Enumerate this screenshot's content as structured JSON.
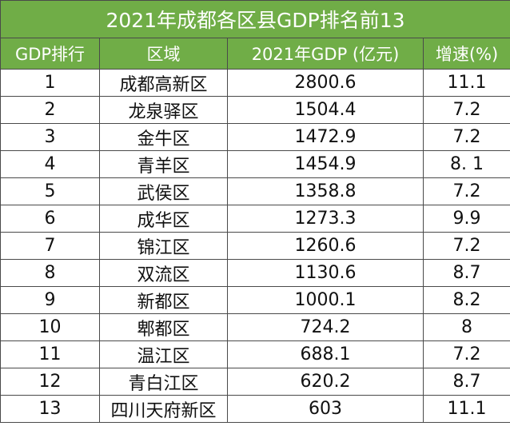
{
  "table": {
    "title": "2021年成都各区县GDP排名前13",
    "headers": [
      "GDP排行",
      "区域",
      "2021年GDP (亿元)",
      "增速(%)"
    ],
    "rows": [
      [
        "1",
        "成都高新区",
        "2800.6",
        "11.1"
      ],
      [
        "2",
        "龙泉驿区",
        "1504.4",
        "7.2"
      ],
      [
        "3",
        "金牛区",
        "1472.9",
        "7.2"
      ],
      [
        "4",
        "青羊区",
        "1454.9",
        "8. 1"
      ],
      [
        "5",
        "武侯区",
        "1358.8",
        "7.2"
      ],
      [
        "6",
        "成华区",
        "1273.3",
        "9.9"
      ],
      [
        "7",
        "锦江区",
        "1260.6",
        "7.2"
      ],
      [
        "8",
        "双流区",
        "1130.6",
        "8.7"
      ],
      [
        "9",
        "新都区",
        "1000.1",
        "8.2"
      ],
      [
        "10",
        "郫都区",
        "724.2",
        "8"
      ],
      [
        "11",
        "温江区",
        "688.1",
        "7.2"
      ],
      [
        "12",
        "青白江区",
        "620.2",
        "8.7"
      ],
      [
        "13",
        "四川天府新区",
        "603",
        "11.1"
      ]
    ]
  },
  "colors": {
    "header_bg": "#70ad47",
    "header_text": "#ffffff",
    "border": "#4a4a4a"
  }
}
